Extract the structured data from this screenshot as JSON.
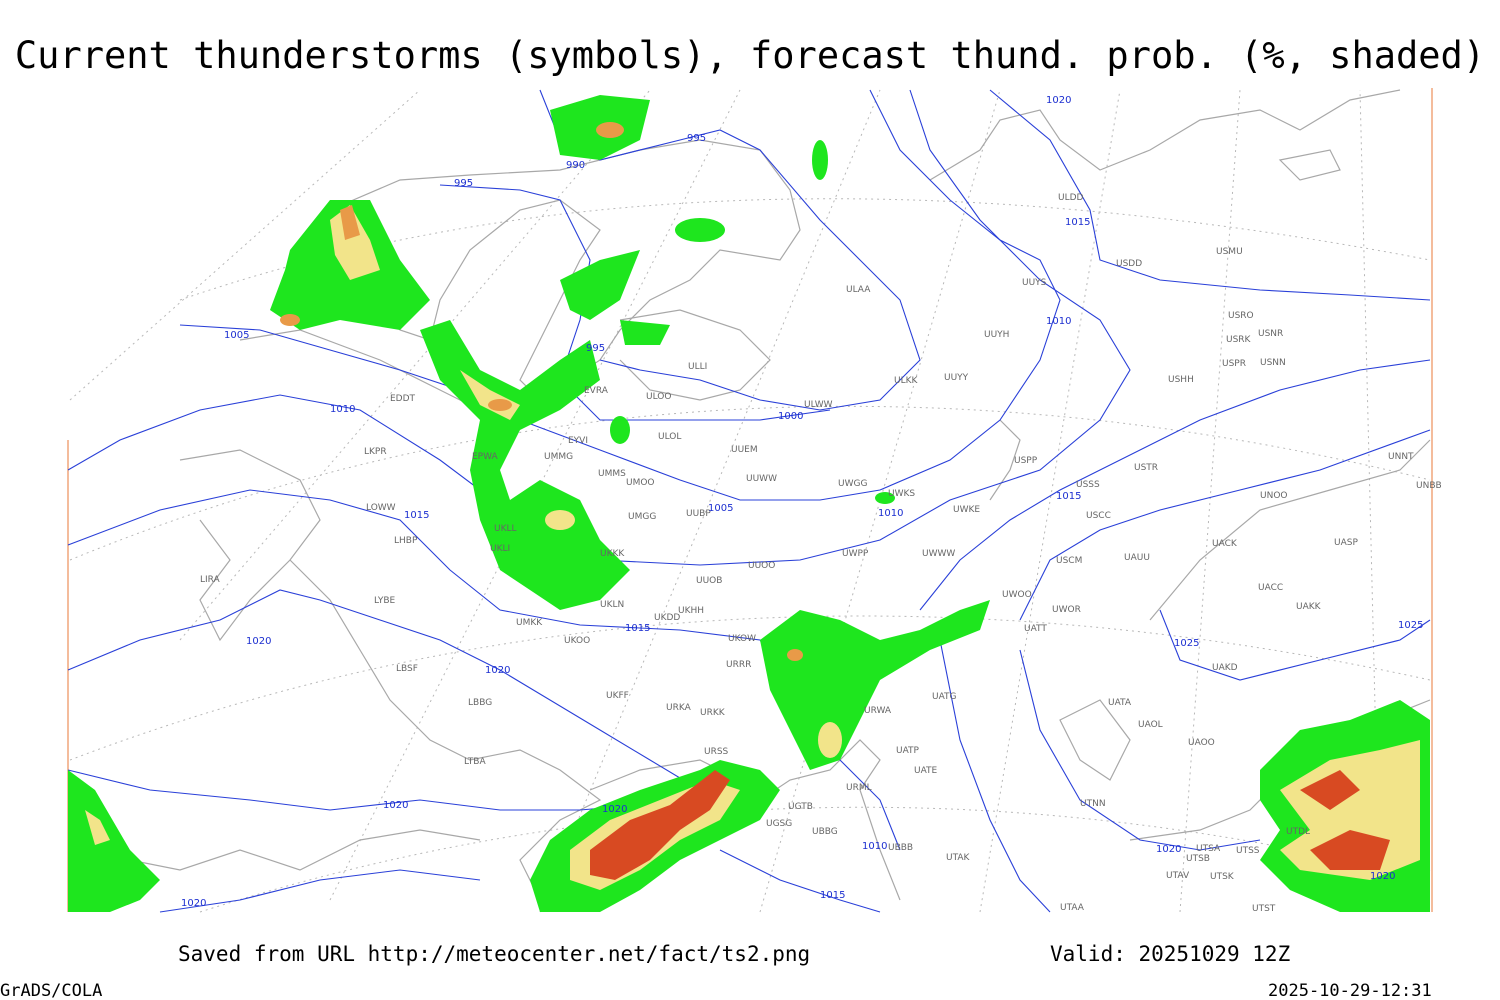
{
  "title": "Current thunderstorms (symbols), forecast thund. prob. (%, shaded)",
  "footer": {
    "saved": "Saved from URL http://meteocenter.net/fact/ts2.png",
    "valid": "Valid: 20251029 12Z",
    "software": "GrADS/COLA",
    "timestamp": "2025-10-29-12:31"
  },
  "stations": [
    "ULDD",
    "USDD",
    "USMU",
    "UUYS",
    "ULAA",
    "UUYH",
    "USRO",
    "USRK",
    "USNR",
    "USPR",
    "USNN",
    "USHH",
    "ULKK",
    "UUYY",
    "ULWW",
    "ULOL",
    "UUEM",
    "EYVI",
    "UMMG",
    "UMMS",
    "UUWW",
    "UWGG",
    "UWKS",
    "UWKE",
    "USSS",
    "USTR",
    "USPP",
    "USCC",
    "UNOO",
    "UNNT",
    "UNBB",
    "UUOO",
    "UWPP",
    "UWWW",
    "USCM",
    "UAUU",
    "UACK",
    "UASP",
    "UACC",
    "UAKK",
    "UWOO",
    "UWOR",
    "UATT",
    "UUOB",
    "UKHH",
    "UKDD",
    "UKOW",
    "URRR",
    "UKFF",
    "URKA",
    "URKK",
    "URWA",
    "UATG",
    "UATA",
    "UAOL",
    "UAOO",
    "UAKD",
    "UATP",
    "UATE",
    "URML",
    "UBBB",
    "UTAK",
    "UTNN",
    "UTSA",
    "UTSB",
    "UTSS",
    "UTAV",
    "UTSK",
    "UTST",
    "UTDL",
    "UTAA",
    "UGTB",
    "UBBG",
    "UGSG",
    "URSS",
    "UKKK",
    "UKLI",
    "UKLL",
    "UKLN",
    "LOWW",
    "LHBP",
    "LIRA",
    "LYBE",
    "LBSF",
    "LBBG",
    "LTBA",
    "LKPR",
    "EPWA",
    "EDDT",
    "ULLI",
    "ULOO",
    "EVRA",
    "UMOO",
    "UMGG",
    "UUBP",
    "UKOO",
    "UMKK"
  ],
  "isobar_labels": [
    1020,
    995,
    990,
    995,
    1015,
    1005,
    995,
    1010,
    1010,
    1000,
    1005,
    1010,
    1015,
    1015,
    1015,
    1020,
    1020,
    1025,
    1025,
    1020,
    1020,
    1010,
    1020,
    1015,
    1020,
    1020
  ]
}
